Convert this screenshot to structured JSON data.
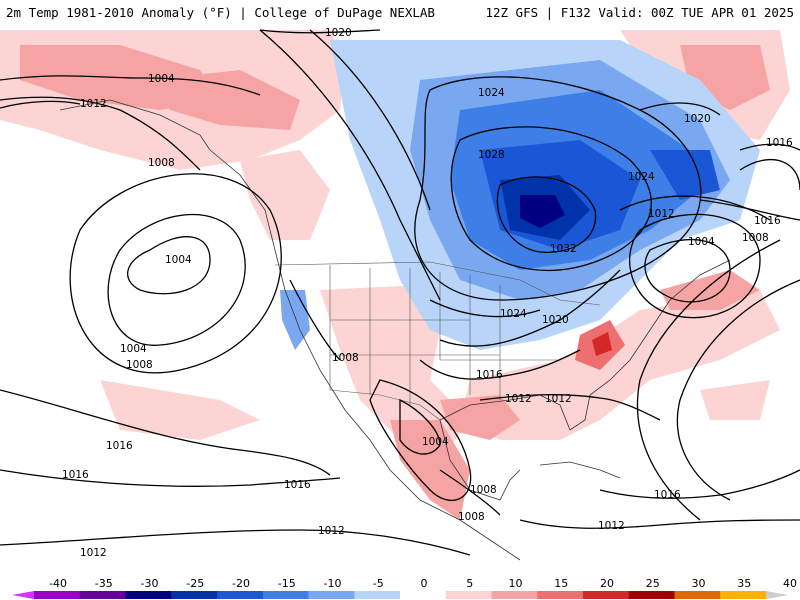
{
  "header": {
    "left_title": "2m Temp 1981-2010 Anomaly (°F) | College of DuPage NEXLAB",
    "right_title": "12Z GFS | F132 Valid: 00Z TUE APR 01 2025"
  },
  "map": {
    "region": "North America",
    "isobar_labels": [
      "1020",
      "1004",
      "1012",
      "1008",
      "1024",
      "1020",
      "1016",
      "1028",
      "1024",
      "1012",
      "1032",
      "1004",
      "1008",
      "1016",
      "1004",
      "1004",
      "1008",
      "1008",
      "1024",
      "1020",
      "1016",
      "1012",
      "1012",
      "1004",
      "1016",
      "1016",
      "1016",
      "1008",
      "1008",
      "1012",
      "1012",
      "1016",
      "1012"
    ]
  },
  "colorbar": {
    "ticks": [
      "-40",
      "-35",
      "-30",
      "-25",
      "-20",
      "-15",
      "-10",
      "-5",
      "0",
      "5",
      "10",
      "15",
      "20",
      "25",
      "30",
      "35",
      "40"
    ],
    "colors": [
      "#d633ff",
      "#9900cc",
      "#660099",
      "#000080",
      "#0033aa",
      "#1a57d6",
      "#3d7fe6",
      "#7aa8f0",
      "#b8d4f8",
      "#ffffff",
      "#fcd4d4",
      "#f6a3a3",
      "#ee6f6f",
      "#d42828",
      "#a00000",
      "#e06a00",
      "#ffb000",
      "#ffe070"
    ]
  }
}
